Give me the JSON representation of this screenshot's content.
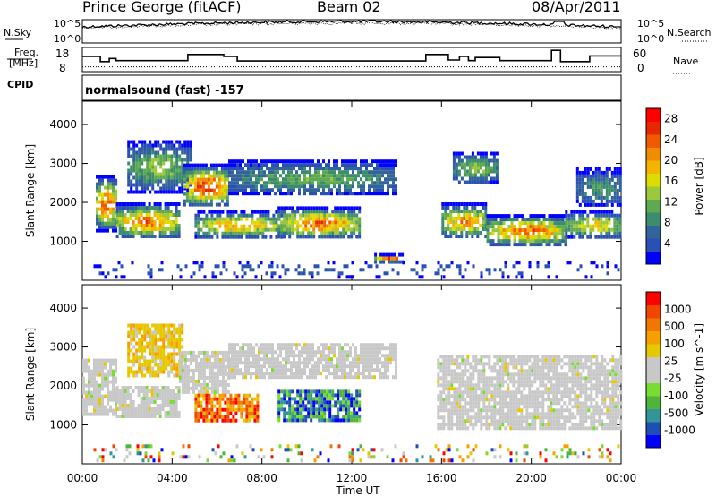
{
  "header": {
    "station": "Prince George (fitACF)",
    "beam": "Beam 02",
    "date": "08/Apr/2011"
  },
  "noise_panel": {
    "left_label": "N.Sky",
    "right_label": "N.Search",
    "left_ticks": [
      "10^5",
      "10^0"
    ],
    "right_ticks": [
      "10^5",
      "10^0"
    ]
  },
  "freq_panel": {
    "left_label_top": "Freq.",
    "left_label_bottom": "[MHz]",
    "right_label": "Nave",
    "left_ticks": [
      "18",
      "8"
    ],
    "right_ticks": [
      "60",
      "0"
    ],
    "freq_steps": [
      {
        "t0": 0.0,
        "t1": 0.8,
        "f": 14.5
      },
      {
        "t0": 0.8,
        "t1": 1.2,
        "f": 12.0
      },
      {
        "t0": 1.2,
        "t1": 1.5,
        "f": 13.5
      },
      {
        "t0": 1.5,
        "t1": 4.7,
        "f": 12.5
      },
      {
        "t0": 4.7,
        "t1": 6.3,
        "f": 15.5
      },
      {
        "t0": 6.3,
        "t1": 6.9,
        "f": 14.5
      },
      {
        "t0": 6.9,
        "t1": 15.3,
        "f": 12.3
      },
      {
        "t0": 15.3,
        "t1": 16.3,
        "f": 15.5
      },
      {
        "t0": 16.3,
        "t1": 16.8,
        "f": 12.8
      },
      {
        "t0": 16.8,
        "t1": 17.2,
        "f": 14.5
      },
      {
        "t0": 17.2,
        "t1": 17.5,
        "f": 12.5
      },
      {
        "t0": 17.5,
        "t1": 18.6,
        "f": 14.0
      },
      {
        "t0": 18.6,
        "t1": 20.9,
        "f": 12.5
      },
      {
        "t0": 20.9,
        "t1": 21.3,
        "f": 17.5
      },
      {
        "t0": 21.3,
        "t1": 22.6,
        "f": 12.0
      },
      {
        "t0": 22.6,
        "t1": 24.0,
        "f": 14.8
      }
    ],
    "nave_level": 12
  },
  "cpid": {
    "label": "CPID",
    "value": "normalsound (fast) -157"
  },
  "chart_data": [
    {
      "type": "heatmap",
      "name": "power",
      "xlabel": "Time UT",
      "ylabel": "Slant Range [km]",
      "xlim": [
        0,
        24
      ],
      "ylim": [
        0,
        4600
      ],
      "x_ticks": [
        "00:00",
        "04:00",
        "08:00",
        "12:00",
        "16:00",
        "20:00",
        "00:00"
      ],
      "y_ticks": [
        1000,
        2000,
        3000,
        4000
      ],
      "colorbar": {
        "label": "Power [dB]",
        "ticks": [
          "4",
          "8",
          "12",
          "16",
          "20",
          "24",
          "28"
        ],
        "range": [
          0,
          30
        ],
        "colors": [
          "#0000ff",
          "#2a50b4",
          "#32649b",
          "#3c8c6e",
          "#5faa50",
          "#9bc83c",
          "#dcdc00",
          "#f5b400",
          "#f08c00",
          "#f05a00",
          "#e62800",
          "#ff0000"
        ]
      },
      "regions": [
        {
          "t0": 0.6,
          "t1": 1.5,
          "r0": 1300,
          "r1": 2700,
          "peak": 26
        },
        {
          "t0": 1.5,
          "t1": 4.3,
          "r0": 1100,
          "r1": 2000,
          "peak": 24
        },
        {
          "t0": 2.0,
          "t1": 4.8,
          "r0": 2300,
          "r1": 3600,
          "peak": 14
        },
        {
          "t0": 4.5,
          "t1": 6.5,
          "r0": 1900,
          "r1": 3000,
          "peak": 26
        },
        {
          "t0": 5.0,
          "t1": 9.0,
          "r0": 1100,
          "r1": 1800,
          "peak": 20
        },
        {
          "t0": 6.5,
          "t1": 14.0,
          "r0": 2200,
          "r1": 3100,
          "peak": 12
        },
        {
          "t0": 8.7,
          "t1": 12.3,
          "r0": 1100,
          "r1": 1900,
          "peak": 24
        },
        {
          "t0": 13.0,
          "t1": 14.3,
          "r0": 500,
          "r1": 700,
          "peak": 26
        },
        {
          "t0": 16.0,
          "t1": 18.0,
          "r0": 1100,
          "r1": 2000,
          "peak": 22
        },
        {
          "t0": 16.5,
          "t1": 18.5,
          "r0": 2500,
          "r1": 3300,
          "peak": 14
        },
        {
          "t0": 18.0,
          "t1": 21.5,
          "r0": 900,
          "r1": 1700,
          "peak": 24
        },
        {
          "t0": 21.5,
          "t1": 24.0,
          "r0": 1100,
          "r1": 1800,
          "peak": 18
        },
        {
          "t0": 22.0,
          "t1": 24.0,
          "r0": 1900,
          "r1": 2900,
          "peak": 10
        },
        {
          "t0": 0.5,
          "t1": 24.0,
          "r0": 100,
          "r1": 500,
          "peak": 6
        }
      ]
    },
    {
      "type": "heatmap",
      "name": "velocity",
      "xlabel": "Time UT",
      "ylabel": "Slant Range [km]",
      "xlim": [
        0,
        24
      ],
      "ylim": [
        0,
        4600
      ],
      "x_ticks": [
        "00:00",
        "04:00",
        "08:00",
        "12:00",
        "16:00",
        "20:00",
        "00:00"
      ],
      "y_ticks": [
        1000,
        2000,
        3000,
        4000
      ],
      "colorbar": {
        "label": "Velocity [m s^-1]",
        "ticks": [
          "1000",
          "500",
          "100",
          "25",
          "-25",
          "-100",
          "-500",
          "-1000"
        ],
        "colors": [
          "#0000ff",
          "#1e50b4",
          "#329696",
          "#50b43c",
          "#78dc32",
          "#c8c8c8",
          "#c8c8c8",
          "#e6c800",
          "#f5a000",
          "#f07800",
          "#f04600",
          "#ff0000"
        ]
      },
      "regions": [
        {
          "t0": 0.0,
          "t1": 1.5,
          "r0": 1300,
          "r1": 2700,
          "class": "ground"
        },
        {
          "t0": 1.5,
          "t1": 4.3,
          "r0": 1200,
          "r1": 2000,
          "class": "ground"
        },
        {
          "t0": 2.0,
          "t1": 4.5,
          "r0": 2300,
          "r1": 3600,
          "class": "weak_away"
        },
        {
          "t0": 4.3,
          "t1": 6.5,
          "r0": 1800,
          "r1": 2900,
          "class": "ground"
        },
        {
          "t0": 5.0,
          "t1": 7.8,
          "r0": 1100,
          "r1": 1800,
          "class": "away"
        },
        {
          "t0": 6.5,
          "t1": 14.0,
          "r0": 2200,
          "r1": 3100,
          "class": "ground"
        },
        {
          "t0": 8.7,
          "t1": 12.3,
          "r0": 1100,
          "r1": 1900,
          "class": "toward"
        },
        {
          "t0": 15.8,
          "t1": 24.0,
          "r0": 900,
          "r1": 2800,
          "class": "ground"
        },
        {
          "t0": 0.5,
          "t1": 24.0,
          "r0": 100,
          "r1": 500,
          "class": "mixed"
        }
      ]
    }
  ]
}
